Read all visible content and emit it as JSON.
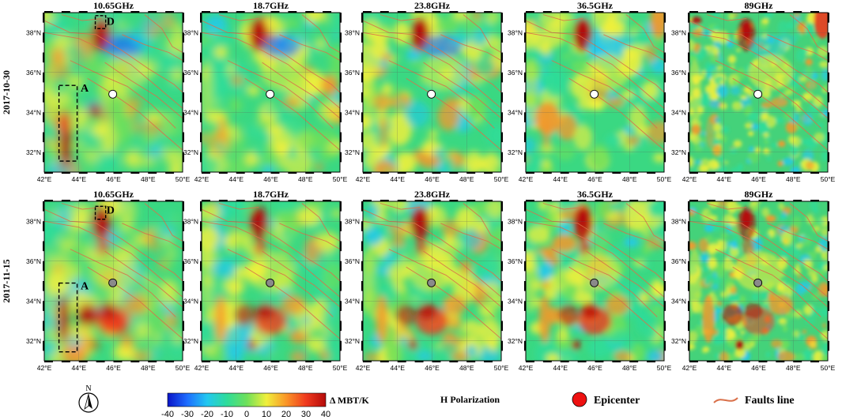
{
  "rows": [
    {
      "date": "2017-10-30",
      "epicenter_color": "#ffffff"
    },
    {
      "date": "2017-11-15",
      "epicenter_color": "#8a8a8a"
    }
  ],
  "frequencies": [
    "10.65GHz",
    "18.7GHz",
    "23.8GHz",
    "36.5GHz",
    "89GHz"
  ],
  "longitude_ticks": [
    "42°E",
    "44°E",
    "46°E",
    "48°E",
    "50°E"
  ],
  "latitude_ticks": [
    "32°N",
    "34°N",
    "36°N",
    "38°N"
  ],
  "region_labels": {
    "a": "A",
    "d": "D"
  },
  "legend": {
    "north_label": "N",
    "unit_label": "Δ MBT/K",
    "ticks": [
      "-40",
      "-30",
      "-20",
      "-10",
      "0",
      "10",
      "20",
      "30",
      "40"
    ],
    "polarization": "H Polarization",
    "epicenter_label": "Epicenter",
    "faults_label": "Faults line",
    "epicenter_color": "#ee1111",
    "fault_color": "#d9704a"
  },
  "colorscale": [
    "#0a14c8",
    "#1e6eff",
    "#22c8f0",
    "#2edc9a",
    "#6ee05a",
    "#f0f03c",
    "#fa9628",
    "#f03a1e",
    "#b40a0a"
  ],
  "map_extent": {
    "lon": [
      42,
      50
    ],
    "lat": [
      31,
      39
    ]
  },
  "epicenter": {
    "lon": 45.96,
    "lat": 34.91
  }
}
